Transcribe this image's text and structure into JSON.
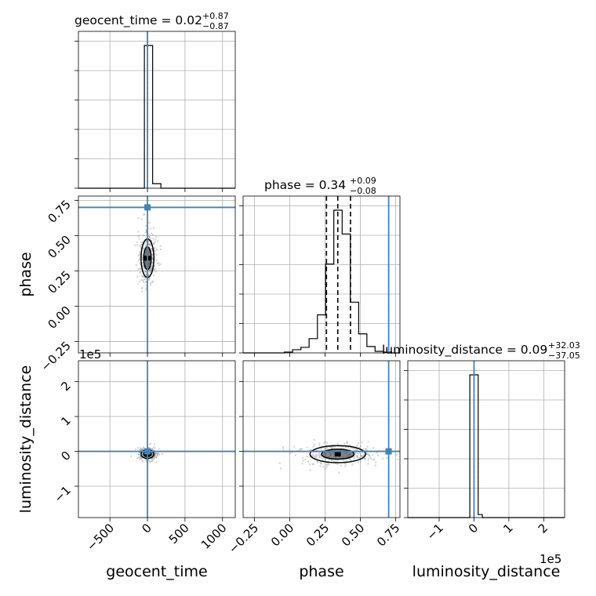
{
  "chart_data": {
    "type": "corner",
    "parameters": [
      "geocent_time",
      "phase",
      "luminosity_distance"
    ],
    "truths": {
      "geocent_time": 0,
      "phase": 0.7,
      "luminosity_distance": 0
    },
    "truth_color": "#4682b4",
    "histogram_color": "#000000",
    "titles": {
      "geocent_time": {
        "label": "geocent_time = 0.02",
        "plus": "+0.87",
        "minus": "−0.87"
      },
      "phase": {
        "label": "phase = 0.34",
        "plus": "+0.09",
        "minus": "−0.08"
      },
      "luminosity_distance": {
        "label": "luminosity_distance = 0.09",
        "plus": "+32.03",
        "minus": "−37.05"
      }
    },
    "axis_labels": {
      "geocent_time": "geocent_time",
      "phase": "phase",
      "luminosity_distance": "luminosity_distance"
    },
    "ranges": {
      "geocent_time": [
        -920,
        1170
      ],
      "phase": [
        -0.33,
        0.78
      ],
      "luminosity_distance": [
        -190000,
        260000
      ]
    },
    "ticks": {
      "geocent_time": {
        "values": [
          -500,
          0,
          500,
          1000
        ],
        "labels": [
          "−500",
          "0",
          "500",
          "1000"
        ]
      },
      "phase": {
        "values": [
          -0.25,
          0,
          0.25,
          0.5,
          0.75
        ],
        "labels": [
          "−0.25",
          "0.00",
          "0.25",
          "0.50",
          "0.75"
        ]
      },
      "luminosity_distance": {
        "values": [
          -100000,
          0,
          100000,
          200000
        ],
        "labels": [
          "−1",
          "0",
          "1",
          "2"
        ],
        "offset": "1e5"
      }
    },
    "quantiles": {
      "phase": [
        0.26,
        0.34,
        0.43
      ]
    },
    "histograms": {
      "geocent_time": {
        "bins": [
          -920,
          -811,
          -701,
          -591,
          -481,
          -371,
          -261,
          -151,
          -41,
          69,
          179,
          289,
          399,
          509,
          619,
          729,
          839,
          949,
          1059,
          1170
        ],
        "counts": [
          0,
          0,
          0,
          0,
          0,
          0,
          0,
          0,
          0.95,
          0.03,
          0,
          0,
          0,
          0,
          0,
          0,
          0,
          0,
          0
        ]
      },
      "phase": {
        "bins": [
          -0.33,
          -0.272,
          -0.213,
          -0.155,
          -0.096,
          -0.038,
          0.02,
          0.079,
          0.137,
          0.196,
          0.254,
          0.312,
          0.371,
          0.429,
          0.488,
          0.546,
          0.604,
          0.663,
          0.721,
          0.78
        ],
        "counts": [
          0,
          0,
          0,
          0,
          0,
          0.005,
          0.02,
          0.035,
          0.09,
          0.24,
          0.56,
          0.9,
          0.75,
          0.32,
          0.12,
          0.04,
          0.01,
          0.005,
          0
        ]
      },
      "luminosity_distance": {
        "bins": [
          -190000,
          -166000,
          -142000,
          -118000,
          -95000,
          -71000,
          -47000,
          -24000,
          -12000,
          0,
          12000,
          24000,
          47000,
          71000,
          95000,
          118000,
          142000,
          166000,
          190000,
          260000
        ],
        "counts": [
          0,
          0,
          0,
          0,
          0,
          0,
          0,
          0,
          0.96,
          0.96,
          0.02,
          0,
          0,
          0,
          0,
          0,
          0,
          0,
          0
        ]
      }
    }
  }
}
